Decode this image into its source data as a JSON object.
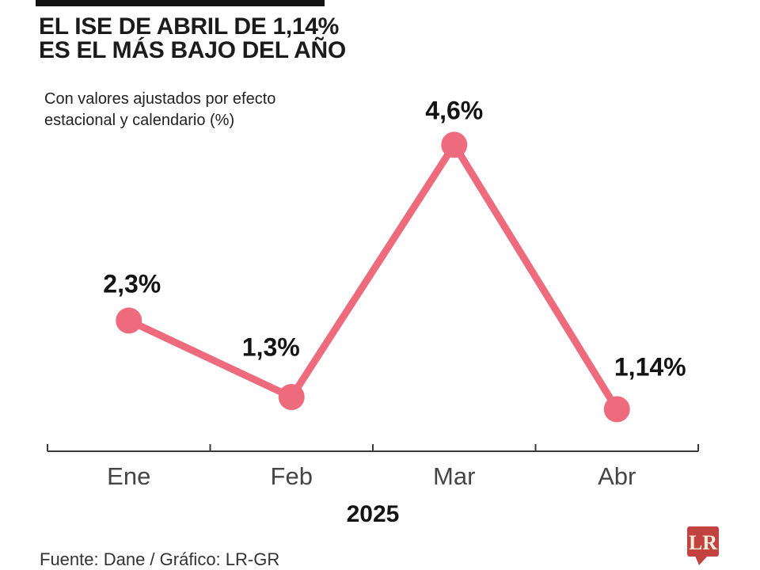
{
  "header": {
    "title_line1": "EL ISE DE ABRIL DE 1,14%",
    "title_line2": "ES EL MÁS BAJO DEL AÑO",
    "subtitle_line1": "Con valores ajustados por efecto",
    "subtitle_line2": "estacional y calendario (%)"
  },
  "chart_data": {
    "type": "line",
    "title": "EL ISE DE ABRIL DE 1,14% ES EL MÁS BAJO DEL AÑO",
    "subtitle": "Con valores ajustados por efecto estacional y calendario (%)",
    "categories": [
      "Ene",
      "Feb",
      "Mar",
      "Abr"
    ],
    "values": [
      2.3,
      1.3,
      4.6,
      1.14
    ],
    "point_labels": [
      "2,3%",
      "1,3%",
      "4,6%",
      "1,14%"
    ],
    "series_name": "ISE",
    "x_group_label": "2025",
    "ylim": [
      0.59,
      5.2
    ],
    "grid": false,
    "legend": false,
    "line_color": "#ee6b7d",
    "axis_color": "#3a3a3a"
  },
  "footer": {
    "source": "Fuente: Dane / Gráfico: LR-GR",
    "logo_text": "LR",
    "logo_bg_color": "#c2423f",
    "logo_text_color": "#f3eddb"
  }
}
